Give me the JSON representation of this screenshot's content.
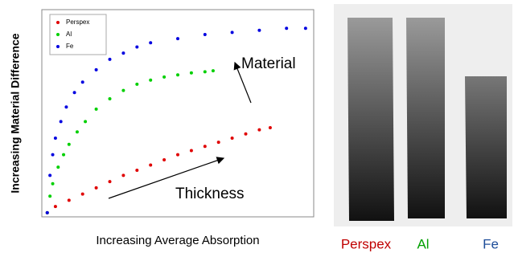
{
  "chart_data": {
    "type": "scatter",
    "x_label": "Increasing Average Absorption",
    "y_label": "Increasing Material Difference",
    "xlim": [
      0,
      100
    ],
    "ylim": [
      0,
      100
    ],
    "annotations": [
      "Material",
      "Thickness"
    ],
    "series": [
      {
        "name": "Perspex",
        "color": "#e00000",
        "x": [
          2,
          5,
          10,
          15,
          20,
          25,
          30,
          35,
          40,
          45,
          50,
          55,
          60,
          65,
          70,
          75,
          80,
          84
        ],
        "values": [
          2,
          5,
          8,
          11,
          14,
          17,
          20,
          22.5,
          25,
          27.5,
          30,
          32,
          34,
          36,
          38,
          40,
          42,
          43
        ]
      },
      {
        "name": "Al",
        "color": "#00d000",
        "x": [
          2,
          3,
          4,
          6,
          8,
          10,
          13,
          16,
          20,
          25,
          30,
          35,
          40,
          45,
          50,
          55,
          60,
          63
        ],
        "values": [
          2,
          10,
          16,
          24,
          30,
          35,
          41,
          46,
          52,
          57,
          61,
          64,
          66,
          67.5,
          68.5,
          69.5,
          70,
          70.5
        ]
      },
      {
        "name": "Fe",
        "color": "#0000e0",
        "x": [
          2,
          3,
          4,
          5,
          7,
          9,
          12,
          15,
          20,
          25,
          30,
          35,
          40,
          50,
          60,
          70,
          80,
          90,
          97
        ],
        "values": [
          2,
          20,
          30,
          38,
          46,
          53,
          60,
          65,
          71,
          76,
          79,
          82,
          84,
          86,
          88,
          89,
          90,
          91,
          91
        ]
      }
    ]
  },
  "xray_panel": {
    "labels": [
      {
        "text": "Perspex",
        "color": "#c00000"
      },
      {
        "text": "Al",
        "color": "#00a000"
      },
      {
        "text": "Fe",
        "color": "#1f4e9a"
      }
    ]
  }
}
